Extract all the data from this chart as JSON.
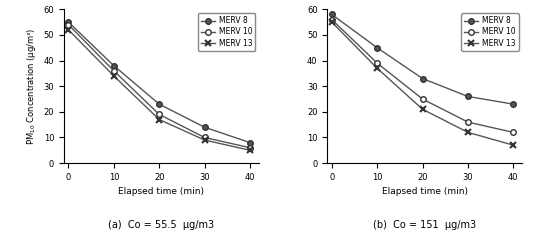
{
  "time": [
    0,
    10,
    20,
    30,
    40
  ],
  "plot_a": {
    "merv8": [
      55,
      38,
      23,
      14,
      8
    ],
    "merv10": [
      54,
      36,
      19,
      10,
      6
    ],
    "merv13": [
      52,
      34,
      17,
      9,
      5
    ]
  },
  "plot_b": {
    "merv8": [
      58,
      45,
      33,
      26,
      23
    ],
    "merv10": [
      56,
      39,
      25,
      16,
      12
    ],
    "merv13": [
      55,
      37,
      21,
      12,
      7
    ]
  },
  "xlabel": "Elapsed time (min)",
  "ylabel": "PM$_{10}$ Concentration (μg/m³)",
  "ylim": [
    0,
    60
  ],
  "yticks": [
    0,
    10,
    20,
    30,
    40,
    50,
    60
  ],
  "xticks": [
    0,
    10,
    20,
    30,
    40
  ],
  "caption_a": "(a)  Co = 55.5  μg/m3",
  "caption_b": "(b)  Co = 151  μg/m3",
  "legend_labels": [
    "MERV 8",
    "MERV 10",
    "MERV 13"
  ],
  "line_color": "#555555",
  "bg_color": "#f0f0f0"
}
